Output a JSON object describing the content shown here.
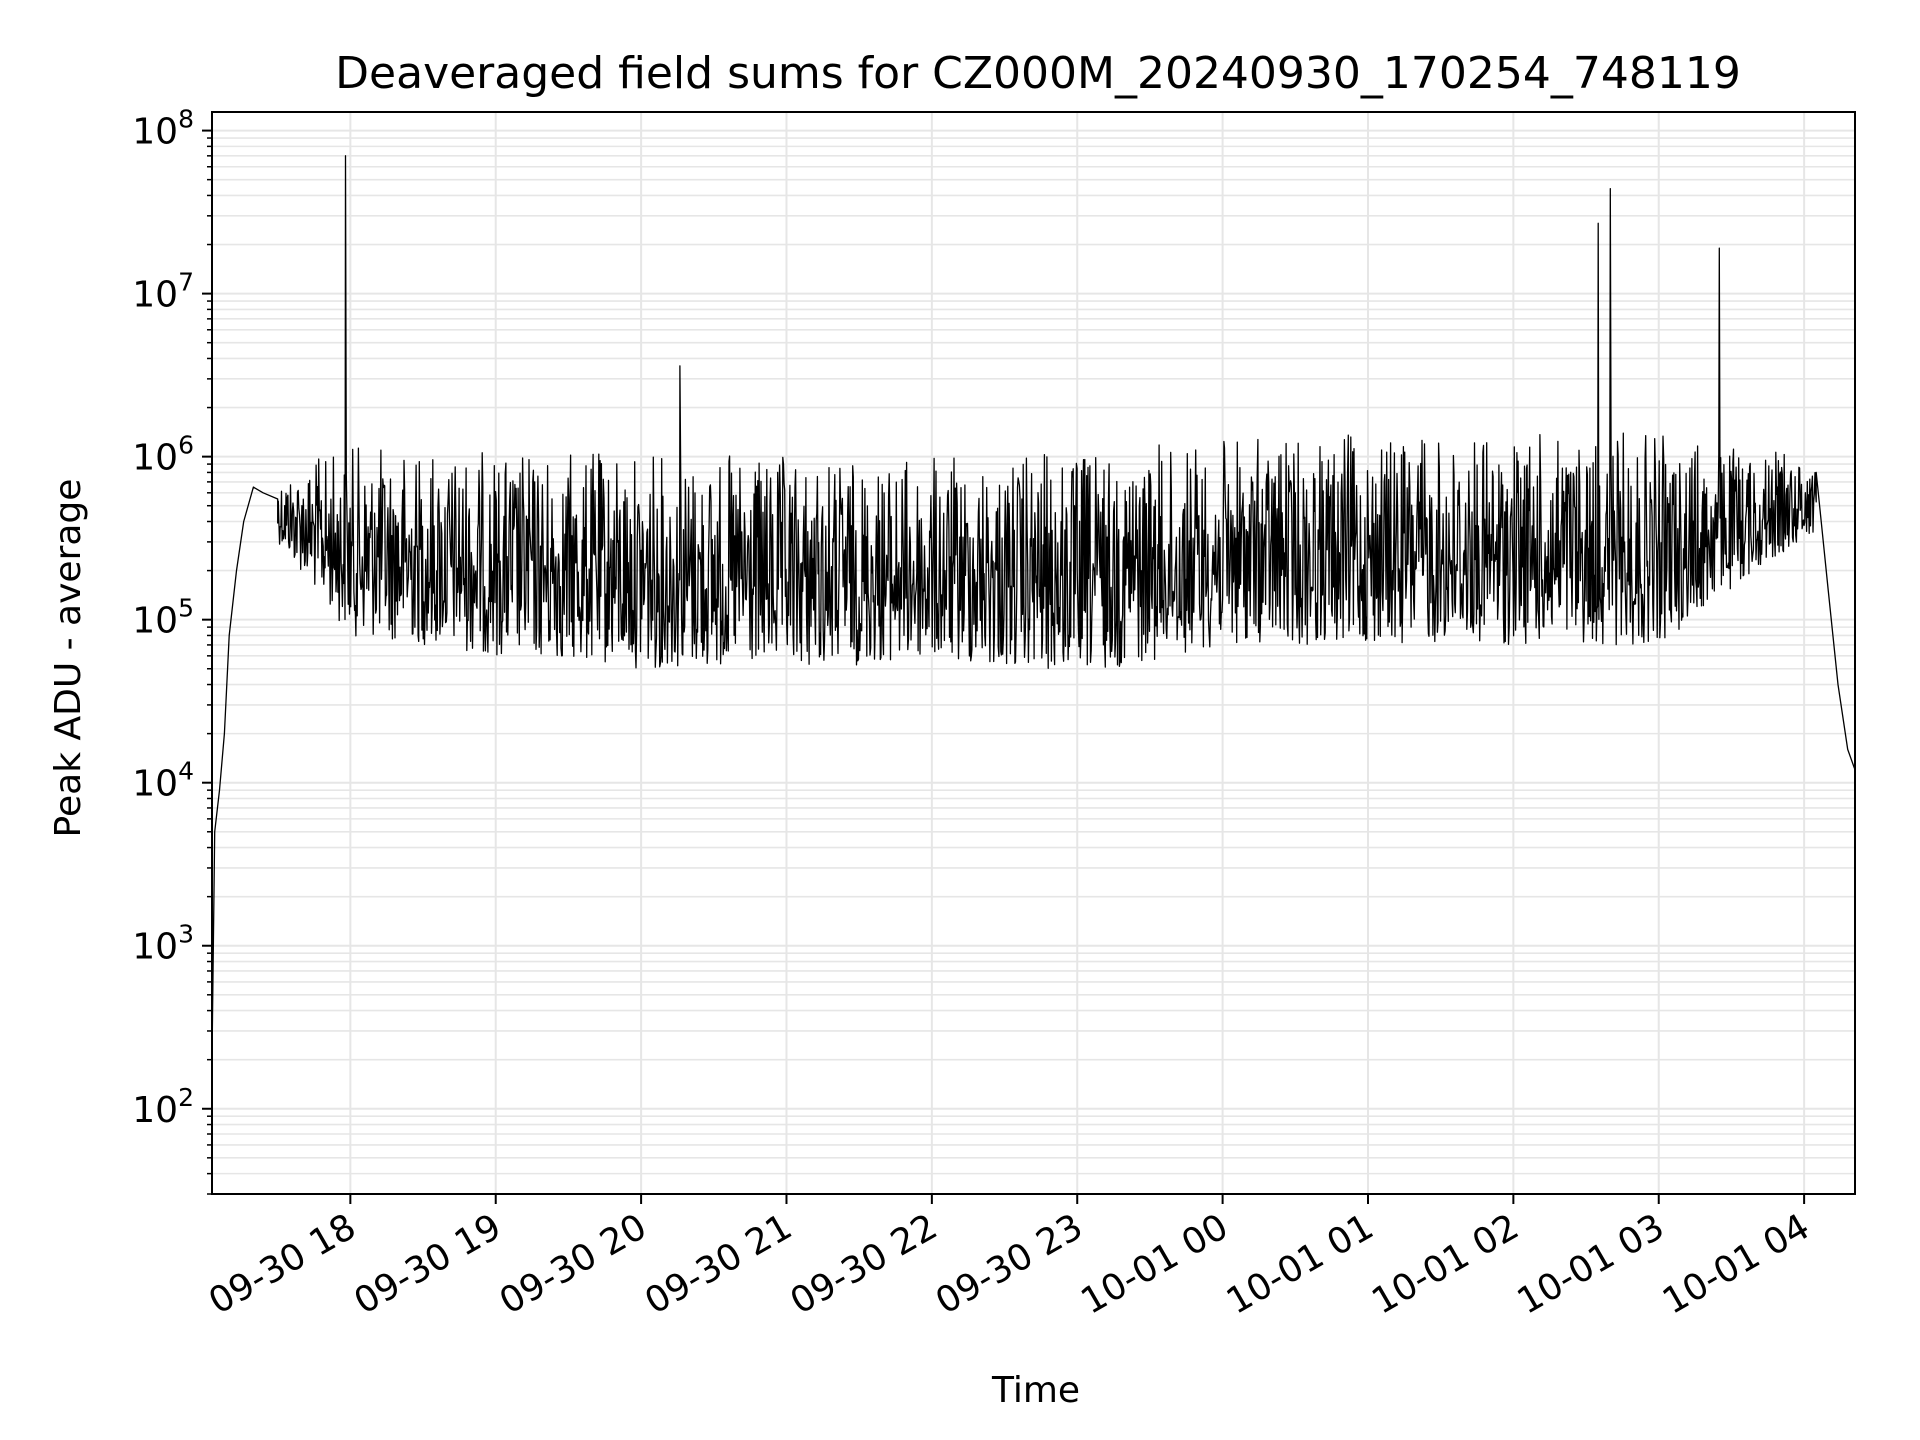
{
  "chart_data": {
    "type": "line",
    "title": "Deaveraged field sums for CZ000M_20240930_170254_748119",
    "xlabel": "Time",
    "ylabel": "Peak ADU - average",
    "yscale": "log",
    "ylim": [
      30,
      130000000
    ],
    "xlim": [
      "2024-09-30 17:02:54",
      "2024-10-01 04:21:00"
    ],
    "grid": true,
    "line_color": "#000000",
    "grid_color": "#e6e6e6",
    "x_ticks": [
      {
        "value": "2024-09-30 18:00",
        "label": "09-30 18"
      },
      {
        "value": "2024-09-30 19:00",
        "label": "09-30 19"
      },
      {
        "value": "2024-09-30 20:00",
        "label": "09-30 20"
      },
      {
        "value": "2024-09-30 21:00",
        "label": "09-30 21"
      },
      {
        "value": "2024-09-30 22:00",
        "label": "09-30 22"
      },
      {
        "value": "2024-09-30 23:00",
        "label": "09-30 23"
      },
      {
        "value": "2024-10-01 00:00",
        "label": "10-01 00"
      },
      {
        "value": "2024-10-01 01:00",
        "label": "10-01 01"
      },
      {
        "value": "2024-10-01 02:00",
        "label": "10-01 02"
      },
      {
        "value": "2024-10-01 03:00",
        "label": "10-01 03"
      },
      {
        "value": "2024-10-01 04:00",
        "label": "10-01 04"
      }
    ],
    "y_ticks": [
      {
        "value": 100,
        "base": "10",
        "exp": "2"
      },
      {
        "value": 1000,
        "base": "10",
        "exp": "3"
      },
      {
        "value": 10000,
        "base": "10",
        "exp": "4"
      },
      {
        "value": 100000,
        "base": "10",
        "exp": "5"
      },
      {
        "value": 1000000,
        "base": "10",
        "exp": "6"
      },
      {
        "value": 10000000,
        "base": "10",
        "exp": "7"
      },
      {
        "value": 100000000,
        "base": "10",
        "exp": "8"
      }
    ],
    "series": [
      {
        "x": [
          "2024-09-30 17:02:54",
          "2024-09-30 17:04",
          "2024-09-30 17:06",
          "2024-09-30 17:08",
          "2024-09-30 17:10",
          "2024-09-30 17:13",
          "2024-09-30 17:16",
          "2024-09-30 17:20",
          "2024-09-30 17:24",
          "2024-09-30 17:30",
          "2024-09-30 17:40",
          "2024-09-30 17:55",
          "2024-09-30 17:58",
          "2024-09-30 18:10",
          "2024-09-30 20:16",
          "2024-09-30 23:00",
          "2024-10-01 00:30",
          "2024-10-01 02:35",
          "2024-10-01 02:40",
          "2024-10-01 03:25",
          "2024-10-01 04:05",
          "2024-10-01 04:10",
          "2024-10-01 04:14",
          "2024-10-01 04:18",
          "2024-10-01 04:21"
        ],
        "y": [
          200,
          5000,
          9000,
          20000,
          80000,
          200000,
          400000,
          650000,
          600000,
          550000,
          500000,
          400000,
          70000000,
          450000,
          3600000,
          200000,
          600000,
          27000000,
          44000000,
          19000000,
          800000,
          150000,
          40000,
          16000,
          12000
        ]
      }
    ],
    "noise_band": {
      "lower": [
        {
          "x": "2024-09-30 17:30",
          "y": 300000
        },
        {
          "x": "2024-09-30 18:00",
          "y": 80000
        },
        {
          "x": "2024-09-30 19:00",
          "y": 60000
        },
        {
          "x": "2024-09-30 20:00",
          "y": 50000
        },
        {
          "x": "2024-09-30 21:00",
          "y": 50000
        },
        {
          "x": "2024-09-30 22:00",
          "y": 55000
        },
        {
          "x": "2024-09-30 23:00",
          "y": 45000
        },
        {
          "x": "2024-10-01 00:00",
          "y": 70000
        },
        {
          "x": "2024-10-01 01:00",
          "y": 70000
        },
        {
          "x": "2024-10-01 02:00",
          "y": 70000
        },
        {
          "x": "2024-10-01 03:00",
          "y": 70000
        },
        {
          "x": "2024-10-01 03:40",
          "y": 200000
        },
        {
          "x": "2024-10-01 04:05",
          "y": 350000
        }
      ],
      "upper": [
        {
          "x": "2024-09-30 17:30",
          "y": 800000
        },
        {
          "x": "2024-09-30 18:00",
          "y": 1200000
        },
        {
          "x": "2024-09-30 19:00",
          "y": 1100000
        },
        {
          "x": "2024-09-30 20:00",
          "y": 1100000
        },
        {
          "x": "2024-09-30 21:00",
          "y": 1000000
        },
        {
          "x": "2024-09-30 22:00",
          "y": 1000000
        },
        {
          "x": "2024-09-30 23:00",
          "y": 1100000
        },
        {
          "x": "2024-10-01 00:00",
          "y": 1300000
        },
        {
          "x": "2024-10-01 01:00",
          "y": 1400000
        },
        {
          "x": "2024-10-01 02:00",
          "y": 1400000
        },
        {
          "x": "2024-10-01 03:00",
          "y": 1400000
        },
        {
          "x": "2024-10-01 04:05",
          "y": 1000000
        }
      ]
    }
  }
}
